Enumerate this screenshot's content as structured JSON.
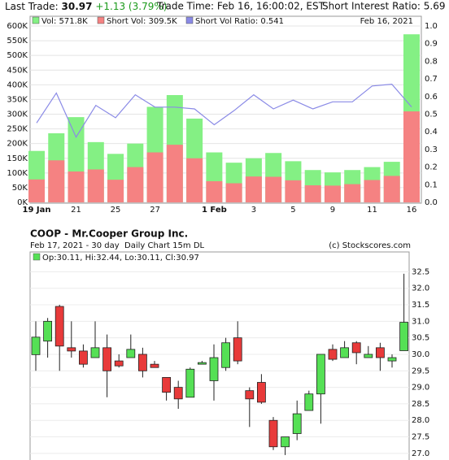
{
  "header": {
    "last_trade_label": "Last Trade:",
    "last_trade": "30.97",
    "change": "+1.13 (3.79%)",
    "trade_time": "Trade Time: Feb 16, 16:00:02, EST",
    "short_interest": "Short Interest Ratio: 5.69"
  },
  "chart_data": [
    {
      "type": "bar",
      "date_label": "Feb 16, 2021",
      "categories": [
        "19 Jan",
        null,
        "21",
        null,
        "25",
        null,
        "27",
        null,
        null,
        "1 Feb",
        null,
        "3",
        null,
        "5",
        null,
        "9",
        null,
        "11",
        null,
        "16"
      ],
      "series": [
        {
          "name": "Vol: 571.8K",
          "color": "#84f084",
          "values": [
            175,
            235,
            290,
            205,
            165,
            200,
            325,
            365,
            285,
            170,
            135,
            150,
            168,
            140,
            110,
            102,
            110,
            120,
            138,
            571.8
          ]
        },
        {
          "name": "Short Vol: 309.5K",
          "color": "#f58282",
          "values": [
            78,
            143,
            105,
            112,
            77,
            120,
            170,
            196,
            150,
            72,
            65,
            88,
            87,
            75,
            58,
            57,
            62,
            76,
            90,
            309.5
          ]
        },
        {
          "name": "Short Vol Ratio: 0.541",
          "color": "#8a8ae6",
          "type": "line",
          "axis": "y2",
          "values": [
            0.45,
            0.62,
            0.37,
            0.55,
            0.48,
            0.61,
            0.54,
            0.54,
            0.53,
            0.44,
            0.52,
            0.61,
            0.53,
            0.58,
            0.53,
            0.57,
            0.57,
            0.66,
            0.67,
            0.541
          ]
        }
      ],
      "ylim": [
        0,
        600
      ],
      "yticks": [
        {
          "value": 0,
          "label": "0K"
        },
        {
          "value": 50,
          "label": "50K"
        },
        {
          "value": 100,
          "label": "100K"
        },
        {
          "value": 150,
          "label": "150K"
        },
        {
          "value": 200,
          "label": "200K"
        },
        {
          "value": 250,
          "label": "250K"
        },
        {
          "value": 300,
          "label": "300K"
        },
        {
          "value": 350,
          "label": "350K"
        },
        {
          "value": 400,
          "label": "400K"
        },
        {
          "value": 450,
          "label": "450K"
        },
        {
          "value": 500,
          "label": "500K"
        },
        {
          "value": 550,
          "label": "550K"
        },
        {
          "value": 600,
          "label": "600K"
        }
      ],
      "y2lim": [
        0,
        1
      ],
      "y2ticks": [
        {
          "value": 0,
          "label": "0.0"
        },
        0.1,
        0.2,
        0.3,
        0.4,
        0.5,
        0.6,
        0.7,
        0.8,
        0.9,
        {
          "value": 1,
          "label": "1.0"
        }
      ],
      "grid": true
    },
    {
      "type": "candlestick",
      "title": "COOP - Mr.Cooper Group Inc.",
      "subtitle": "Feb 17, 2021 - 30 day  Daily Chart 15m DL",
      "credit": "(c) Stockscores.com",
      "legend": "Op:30.11, Hi:32.44, Lo:30.11, Cl:30.97",
      "up_color": "#55e055",
      "down_color": "#e83a3a",
      "open": [
        29.99,
        30.4,
        31.45,
        30.2,
        30.1,
        29.9,
        30.2,
        29.8,
        29.9,
        30.0,
        29.7,
        29.3,
        29.0,
        28.7,
        29.7,
        29.2,
        29.6,
        30.5,
        28.9,
        29.15,
        28.0,
        27.2,
        27.6,
        28.3,
        28.8,
        30.15,
        29.9,
        30.35,
        29.9,
        30.2,
        29.8,
        30.11
      ],
      "high": [
        31.0,
        31.1,
        31.5,
        31.0,
        30.3,
        31.0,
        30.6,
        30.0,
        30.6,
        30.2,
        29.8,
        29.3,
        29.2,
        29.6,
        29.8,
        30.3,
        30.5,
        31.0,
        29.0,
        29.4,
        28.1,
        27.5,
        28.6,
        28.9,
        30.0,
        30.3,
        30.4,
        30.4,
        30.25,
        30.35,
        30.0,
        32.44
      ],
      "low": [
        29.5,
        29.9,
        29.5,
        29.9,
        29.6,
        29.9,
        28.7,
        29.6,
        29.9,
        29.3,
        29.6,
        28.6,
        28.35,
        28.7,
        29.7,
        28.6,
        29.5,
        29.7,
        27.8,
        28.5,
        27.1,
        26.95,
        27.4,
        28.3,
        27.9,
        29.8,
        29.9,
        29.7,
        29.9,
        29.5,
        29.6,
        30.11
      ],
      "close": [
        30.52,
        31.0,
        30.25,
        30.1,
        29.7,
        30.2,
        29.5,
        29.65,
        30.15,
        29.5,
        29.6,
        28.85,
        28.65,
        29.55,
        29.75,
        29.9,
        30.35,
        29.8,
        28.65,
        28.55,
        27.2,
        27.5,
        28.2,
        28.8,
        30.0,
        29.85,
        30.2,
        30.05,
        30.0,
        29.9,
        29.9,
        30.97
      ],
      "ylim": [
        26.8,
        33.1
      ],
      "yticks": [
        {
          "value": 27,
          "label": "27.0"
        },
        27.5,
        {
          "value": 28,
          "label": "28.0"
        },
        28.5,
        {
          "value": 29,
          "label": "29.0"
        },
        29.5,
        {
          "value": 30,
          "label": "30.0"
        },
        30.5,
        {
          "value": 31,
          "label": "31.0"
        },
        31.5,
        {
          "value": 32,
          "label": "32.0"
        },
        32.5
      ],
      "grid": true
    }
  ]
}
